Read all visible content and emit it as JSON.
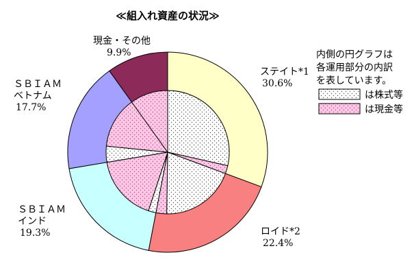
{
  "chart_data": {
    "type": "pie",
    "title": "≪組入れ資産の状況≫",
    "outer": [
      {
        "name": "ステイト*1",
        "value": 30.6,
        "value_label": "30.6%",
        "color": "#ffffc8"
      },
      {
        "name": "ロイド*2",
        "value": 22.4,
        "value_label": "22.4%",
        "color": "#f88080"
      },
      {
        "name": "ＳＢＩＡＭ\nインド",
        "value": 19.3,
        "value_label": "19.3%",
        "color": "#c8ffff"
      },
      {
        "name": "ＳＢＩＡＭ\nベトナム",
        "value": 17.7,
        "value_label": "17.7%",
        "color": "#a4a0ff"
      },
      {
        "name": "現金・その他",
        "value": 9.9,
        "value_label": "9.9%",
        "color": "#8c2a5a"
      }
    ],
    "inner": [
      {
        "parent": 0,
        "kind": "stock",
        "value": 28.5
      },
      {
        "parent": 0,
        "kind": "cash",
        "value": 2.1
      },
      {
        "parent": 1,
        "kind": "stock",
        "value": 19.6
      },
      {
        "parent": 1,
        "kind": "cash",
        "value": 2.8
      },
      {
        "parent": 2,
        "kind": "stock",
        "value": 2.0
      },
      {
        "parent": 2,
        "kind": "cash",
        "value": 17.3
      },
      {
        "parent": 3,
        "kind": "stock",
        "value": 4.2
      },
      {
        "parent": 3,
        "kind": "cash",
        "value": 13.5
      },
      {
        "parent": 4,
        "kind": "cash",
        "value": 9.9
      }
    ],
    "legend": {
      "note": [
        "内側の円グラフは",
        "各運用部分の内訳",
        "を表しています。"
      ],
      "stock_label": "は株式等",
      "cash_label": "は現金等",
      "position": "right"
    },
    "colors": {
      "stock_fill": "#ffffff",
      "stock_dot": "#555555",
      "cash_fill": "#ffc8e6",
      "cash_dot": "#c04080"
    }
  }
}
